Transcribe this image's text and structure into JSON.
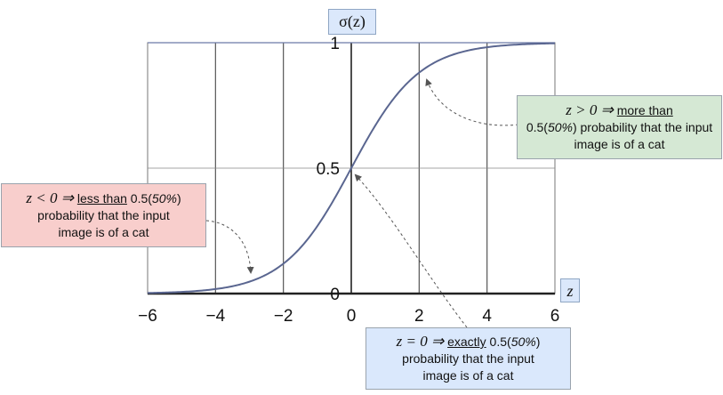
{
  "chart_data": {
    "type": "line",
    "function": "sigmoid",
    "x": [
      -6,
      -5,
      -4,
      -3,
      -2,
      -1,
      0,
      1,
      2,
      3,
      4,
      5,
      6
    ],
    "y": [
      0.0025,
      0.0067,
      0.018,
      0.047,
      0.119,
      0.269,
      0.5,
      0.731,
      0.881,
      0.953,
      0.982,
      0.9933,
      0.9975
    ],
    "xlim": [
      -6,
      6
    ],
    "ylim": [
      0,
      1
    ],
    "x_ticks": [
      "−6",
      "−4",
      "−2",
      "0",
      "2",
      "4",
      "6"
    ],
    "y_ticks": [
      "0",
      "0.5",
      "1"
    ],
    "xlabel": "z",
    "ylabel": "σ(z)",
    "grid": true,
    "line_color": "#5a6690"
  },
  "annotations": {
    "positive": {
      "cond": "z > 0 ⇒",
      "emph": "more than",
      "rest1": "0.5(",
      "pct": "50%",
      "rest2": ") probability that the input image is of a cat",
      "color": "#d5e8d4"
    },
    "negative": {
      "cond": "z < 0 ⇒",
      "emph": "less than",
      "rest1": " 0.5(",
      "pct": "50%",
      "rest2": ")",
      "rest3": "probability that the input image is of a cat",
      "color": "#f8cecc"
    },
    "zero": {
      "cond": "z = 0 ⇒",
      "emph": "exactly",
      "rest1": " 0.5(",
      "pct": "50%",
      "rest2": ")",
      "rest3": "probability that the input image is of a cat",
      "color": "#dae8fc"
    }
  }
}
